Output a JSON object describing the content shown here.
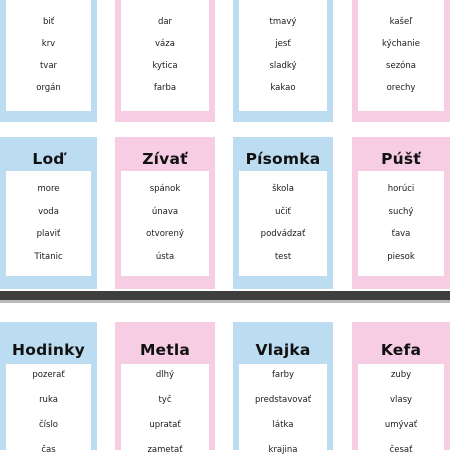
{
  "colors": {
    "blue": "#bcdcf1",
    "pink": "#f7cde3",
    "divider": "#3e3e3e"
  },
  "rows": [
    {
      "cards": [
        {
          "title": "",
          "color": "blue",
          "words": [
            "biť",
            "krv",
            "tvar",
            "orgán"
          ]
        },
        {
          "title": "",
          "color": "pink",
          "words": [
            "dar",
            "váza",
            "kytica",
            "farba"
          ]
        },
        {
          "title": "",
          "color": "blue",
          "words": [
            "tmavý",
            "jesť",
            "sladký",
            "kakao"
          ]
        },
        {
          "title": "",
          "color": "pink",
          "words": [
            "kašeľ",
            "kýchanie",
            "sezóna",
            "orechy"
          ]
        }
      ]
    },
    {
      "cards": [
        {
          "title": "Loď",
          "color": "blue",
          "words": [
            "more",
            "voda",
            "plaviť",
            "Titanic"
          ]
        },
        {
          "title": "Zívať",
          "color": "pink",
          "words": [
            "spánok",
            "únava",
            "otvorený",
            "ústa"
          ]
        },
        {
          "title": "Písomka",
          "color": "blue",
          "words": [
            "škola",
            "učiť",
            "podvádzať",
            "test"
          ]
        },
        {
          "title": "Púšť",
          "color": "pink",
          "words": [
            "horúci",
            "suchý",
            "ťava",
            "piesok"
          ]
        }
      ]
    },
    {
      "cards": [
        {
          "title": "Hodinky",
          "color": "blue",
          "words": [
            "pozerať",
            "ruka",
            "číslo",
            "čas"
          ]
        },
        {
          "title": "Metla",
          "color": "pink",
          "words": [
            "dlhý",
            "tyč",
            "upratať",
            "zametať"
          ]
        },
        {
          "title": "Vlajka",
          "color": "blue",
          "words": [
            "farby",
            "predstavovať",
            "látka",
            "krajina"
          ]
        },
        {
          "title": "Kefa",
          "color": "pink",
          "words": [
            "zuby",
            "vlasy",
            "umývať",
            "česať"
          ]
        }
      ]
    }
  ]
}
